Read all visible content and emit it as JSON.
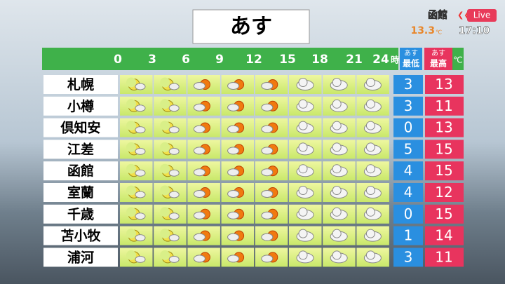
{
  "header": {
    "title": "あす",
    "location": "函館",
    "live": "Live",
    "temperature": "13.3",
    "temperature_unit": "℃",
    "time": "17:10"
  },
  "table": {
    "hours": [
      "0",
      "3",
      "6",
      "9",
      "12",
      "15",
      "18",
      "21",
      "24"
    ],
    "hour_unit": "時",
    "min_label": [
      "あす",
      "最低"
    ],
    "max_label": [
      "あす",
      "最高"
    ],
    "unit": "℃",
    "rows": [
      {
        "city": "札幌",
        "min": 3,
        "max": 13
      },
      {
        "city": "小樽",
        "min": 3,
        "max": 11
      },
      {
        "city": "倶知安",
        "min": 0,
        "max": 13
      },
      {
        "city": "江差",
        "min": 5,
        "max": 15
      },
      {
        "city": "函館",
        "min": 4,
        "max": 15
      },
      {
        "city": "室蘭",
        "min": 4,
        "max": 12
      },
      {
        "city": "千歳",
        "min": 0,
        "max": 15
      },
      {
        "city": "苫小牧",
        "min": 1,
        "max": 14
      },
      {
        "city": "浦河",
        "min": 3,
        "max": 11
      }
    ]
  }
}
